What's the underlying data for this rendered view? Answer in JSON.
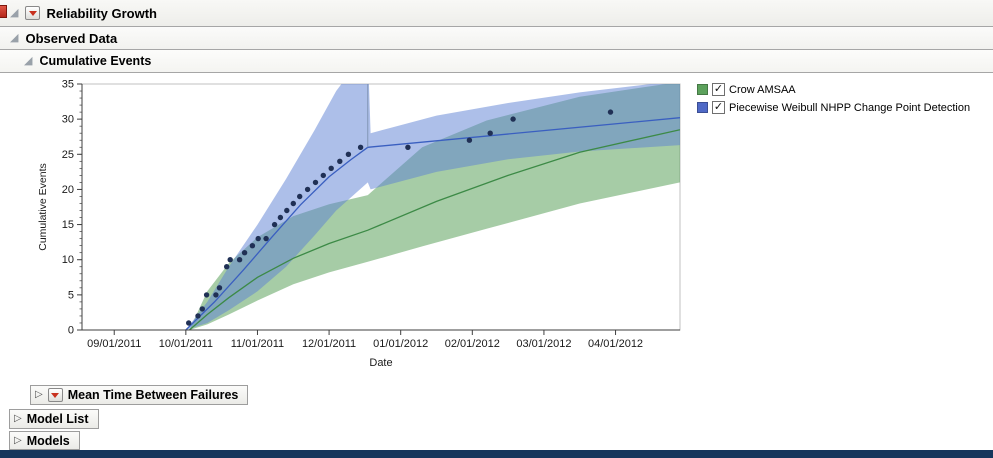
{
  "headers": {
    "reliability_growth": "Reliability Growth",
    "observed_data": "Observed Data",
    "cumulative_events": "Cumulative Events",
    "mean_time_between_failures": "Mean Time Between Failures",
    "model_list": "Model List",
    "models": "Models"
  },
  "legend": {
    "items": [
      {
        "label": "Crow AMSAA",
        "color": "#5ca15c",
        "checked": true
      },
      {
        "label": "Piecewise Weibull NHPP Change Point Detection",
        "color": "#4f69c6",
        "checked": true
      }
    ]
  },
  "colors": {
    "point": "#203055",
    "change_point_line": "#8095b5",
    "axis": "#3f3f3f",
    "frame": "#c0c0c0",
    "bottom_bar": "#16365c"
  },
  "chart_data": {
    "type": "line",
    "title": "Cumulative Events",
    "xlabel": "Date",
    "ylabel": "Cumulative Events",
    "x_tick_labels": [
      "09/01/2011",
      "10/01/2011",
      "11/01/2011",
      "12/01/2011",
      "01/01/2012",
      "02/01/2012",
      "03/01/2012",
      "04/01/2012"
    ],
    "x_tick_months": [
      0,
      1,
      2,
      3,
      4,
      5,
      6,
      7
    ],
    "y_ticks": [
      0,
      5,
      10,
      15,
      20,
      25,
      30,
      35
    ],
    "ylim": [
      0,
      35
    ],
    "x_domain": [
      -0.45,
      7.9
    ],
    "grid": false,
    "legend_position": "right",
    "change_point": {
      "month": 3.54,
      "from": 26,
      "to": 35
    },
    "observed_points": [
      [
        1.04,
        1
      ],
      [
        1.17,
        2
      ],
      [
        1.23,
        3
      ],
      [
        1.29,
        5
      ],
      [
        1.42,
        5
      ],
      [
        1.47,
        6
      ],
      [
        1.57,
        9
      ],
      [
        1.62,
        10
      ],
      [
        1.75,
        10
      ],
      [
        1.82,
        11
      ],
      [
        1.93,
        12
      ],
      [
        2.01,
        13
      ],
      [
        2.12,
        13
      ],
      [
        2.24,
        15
      ],
      [
        2.32,
        16
      ],
      [
        2.41,
        17
      ],
      [
        2.5,
        18
      ],
      [
        2.59,
        19
      ],
      [
        2.7,
        20
      ],
      [
        2.81,
        21
      ],
      [
        2.92,
        22
      ],
      [
        3.03,
        23
      ],
      [
        3.15,
        24
      ],
      [
        3.27,
        25
      ],
      [
        3.44,
        26
      ],
      [
        4.1,
        26
      ],
      [
        4.96,
        27
      ],
      [
        5.25,
        28
      ],
      [
        5.57,
        30
      ],
      [
        6.93,
        31
      ]
    ],
    "series": [
      {
        "name": "Crow AMSAA",
        "line_color": "#3c8a46",
        "band_color": "rgba(78,154,78,0.5)",
        "line": [
          [
            1.05,
            0
          ],
          [
            1.3,
            2.2
          ],
          [
            1.6,
            4.6
          ],
          [
            2.0,
            7.5
          ],
          [
            2.5,
            10.2
          ],
          [
            3.0,
            12.3
          ],
          [
            3.54,
            14.2
          ],
          [
            4.5,
            18.3
          ],
          [
            5.5,
            22.0
          ],
          [
            6.5,
            25.3
          ],
          [
            7.9,
            28.5
          ]
        ],
        "band": [
          [
            1.05,
            0,
            0
          ],
          [
            1.3,
            0.8,
            5.5
          ],
          [
            1.6,
            2.2,
            9.5
          ],
          [
            2.0,
            4.2,
            13.2
          ],
          [
            2.5,
            6.5,
            16.2
          ],
          [
            3.0,
            8.2,
            17.9
          ],
          [
            3.54,
            9.7,
            19.2
          ],
          [
            4.3,
            11.9,
            26.0
          ],
          [
            5.2,
            14.4,
            29.8
          ],
          [
            6.5,
            18.0,
            33.2
          ],
          [
            7.9,
            21.0,
            35.3
          ]
        ]
      },
      {
        "name": "Piecewise Weibull NHPP Change Point Detection",
        "line_color": "#3a5fc0",
        "band_color": "rgba(91,127,212,0.5)",
        "line": [
          [
            1.0,
            0
          ],
          [
            1.4,
            4.0
          ],
          [
            1.8,
            8.5
          ],
          [
            2.2,
            13.2
          ],
          [
            2.6,
            17.8
          ],
          [
            3.0,
            21.8
          ],
          [
            3.3,
            24.2
          ],
          [
            3.54,
            26.0
          ],
          [
            7.9,
            30.2
          ]
        ],
        "band": [
          [
            1.0,
            0,
            0
          ],
          [
            1.3,
            1.0,
            4.0
          ],
          [
            1.6,
            2.8,
            9.0
          ],
          [
            2.0,
            5.5,
            15.0
          ],
          [
            2.4,
            9.0,
            21.5
          ],
          [
            2.8,
            13.5,
            28.5
          ],
          [
            3.1,
            17.0,
            34.0
          ],
          [
            3.54,
            21.0,
            40.0
          ],
          [
            3.58,
            20.0,
            28.0
          ],
          [
            4.5,
            22.5,
            30.5
          ],
          [
            5.5,
            24.3,
            32.3
          ],
          [
            6.5,
            25.4,
            33.8
          ],
          [
            7.9,
            26.3,
            35.5
          ]
        ]
      }
    ]
  }
}
